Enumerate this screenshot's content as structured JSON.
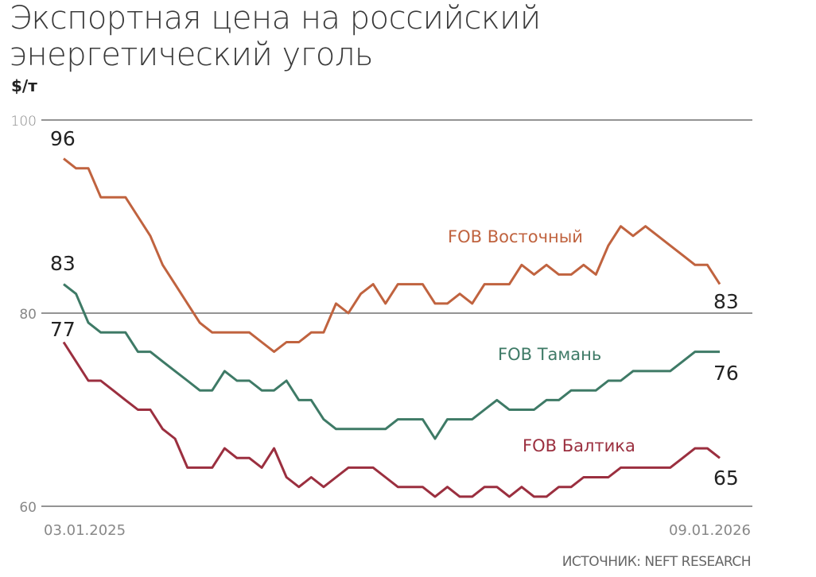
{
  "header": {
    "title": "Экспортная цена на российский энергетический уголь",
    "unit": "$/т"
  },
  "footer": {
    "source": "ИСТОЧНИК: NEFT RESEARCH"
  },
  "axis": {
    "y_ticks": [
      "100",
      "80",
      "60"
    ],
    "x_start": "03.01.2025",
    "x_end": "09.01.2026"
  },
  "labels": {
    "vostochny_name": "FOB Восточный",
    "taman_name": "FOB Тамань",
    "baltika_name": "FOB Балтика",
    "vostochny_start": "96",
    "vostochny_end": "83",
    "taman_start": "83",
    "taman_end": "76",
    "baltika_start": "77",
    "baltika_end": "65"
  },
  "colors": {
    "vostochny": "#c0633f",
    "taman": "#3e7a66",
    "baltika": "#9b2f3f",
    "grid": "#707070"
  },
  "chart_data": {
    "type": "line",
    "title": "Экспортная цена на российский энергетический уголь",
    "ylabel": "$/т",
    "xlabel": "",
    "ylim": [
      60,
      100
    ],
    "y_ticks": [
      60,
      80,
      100
    ],
    "grid": true,
    "x_range": [
      "03.01.2025",
      "09.01.2026"
    ],
    "x_frequency": "weekly",
    "legend_position": "inline labels",
    "series": [
      {
        "name": "FOB Восточный",
        "color": "#c0633f",
        "values": [
          96,
          95,
          95,
          92,
          92,
          92,
          90,
          88,
          85,
          83,
          81,
          79,
          78,
          78,
          78,
          78,
          77,
          76,
          77,
          77,
          78,
          78,
          81,
          80,
          82,
          83,
          81,
          83,
          83,
          83,
          81,
          81,
          82,
          81,
          83,
          83,
          83,
          85,
          84,
          85,
          84,
          84,
          85,
          84,
          87,
          89,
          88,
          89,
          88,
          87,
          86,
          85,
          85,
          83
        ]
      },
      {
        "name": "FOB Тамань",
        "color": "#3e7a66",
        "values": [
          83,
          82,
          79,
          78,
          78,
          78,
          76,
          76,
          75,
          74,
          73,
          72,
          72,
          74,
          73,
          73,
          72,
          72,
          73,
          71,
          71,
          69,
          68,
          68,
          68,
          68,
          68,
          69,
          69,
          69,
          67,
          69,
          69,
          69,
          70,
          71,
          70,
          70,
          70,
          71,
          71,
          72,
          72,
          72,
          73,
          73,
          74,
          74,
          74,
          74,
          75,
          76,
          76,
          76
        ]
      },
      {
        "name": "FOB Балтика",
        "color": "#9b2f3f",
        "values": [
          77,
          75,
          73,
          73,
          72,
          71,
          70,
          70,
          68,
          67,
          64,
          64,
          64,
          66,
          65,
          65,
          64,
          66,
          63,
          62,
          63,
          62,
          63,
          64,
          64,
          64,
          63,
          62,
          62,
          62,
          61,
          62,
          61,
          61,
          62,
          62,
          61,
          62,
          61,
          61,
          62,
          62,
          63,
          63,
          63,
          64,
          64,
          64,
          64,
          64,
          65,
          66,
          66,
          65
        ]
      }
    ]
  }
}
